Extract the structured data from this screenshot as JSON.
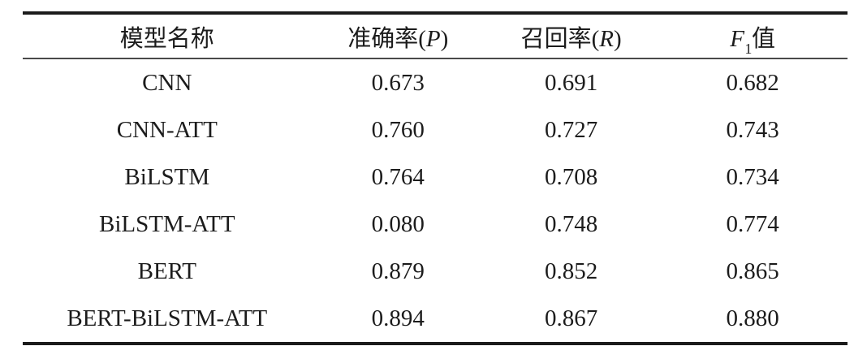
{
  "table": {
    "title_semantic": "Model comparison results table",
    "columns": {
      "model": {
        "label": "模型名称"
      },
      "precision": {
        "prefix": "准确率(",
        "symbol": "P",
        "suffix": ")"
      },
      "recall": {
        "prefix": "召回率(",
        "symbol": "R",
        "suffix": ")"
      },
      "f1": {
        "symbol": "F",
        "sub": "1",
        "suffix": "值"
      }
    },
    "rows": [
      {
        "model": "CNN",
        "precision": "0.673",
        "recall": "0.691",
        "f1": "0.682"
      },
      {
        "model": "CNN-ATT",
        "precision": "0.760",
        "recall": "0.727",
        "f1": "0.743"
      },
      {
        "model": "BiLSTM",
        "precision": "0.764",
        "recall": "0.708",
        "f1": "0.734"
      },
      {
        "model": "BiLSTM-ATT",
        "precision": "0.080",
        "recall": "0.748",
        "f1": "0.774"
      },
      {
        "model": "BERT",
        "precision": "0.879",
        "recall": "0.852",
        "f1": "0.865"
      },
      {
        "model": "BERT-BiLSTM-ATT",
        "precision": "0.894",
        "recall": "0.867",
        "f1": "0.880"
      }
    ],
    "colors": {
      "text": "#1c1c1c",
      "rule_thick": "#1b1b1b",
      "rule_thin": "#4a4a4a",
      "background": "#ffffff"
    }
  },
  "chart_data": {
    "type": "table",
    "title": "",
    "categories": [
      "CNN",
      "CNN-ATT",
      "BiLSTM",
      "BiLSTM-ATT",
      "BERT",
      "BERT-BiLSTM-ATT"
    ],
    "series": [
      {
        "name": "准确率(P)",
        "values": [
          0.673,
          0.76,
          0.764,
          0.08,
          0.879,
          0.894
        ]
      },
      {
        "name": "召回率(R)",
        "values": [
          0.691,
          0.727,
          0.708,
          0.748,
          0.852,
          0.867
        ]
      },
      {
        "name": "F1值",
        "values": [
          0.682,
          0.743,
          0.734,
          0.774,
          0.865,
          0.88
        ]
      }
    ]
  }
}
